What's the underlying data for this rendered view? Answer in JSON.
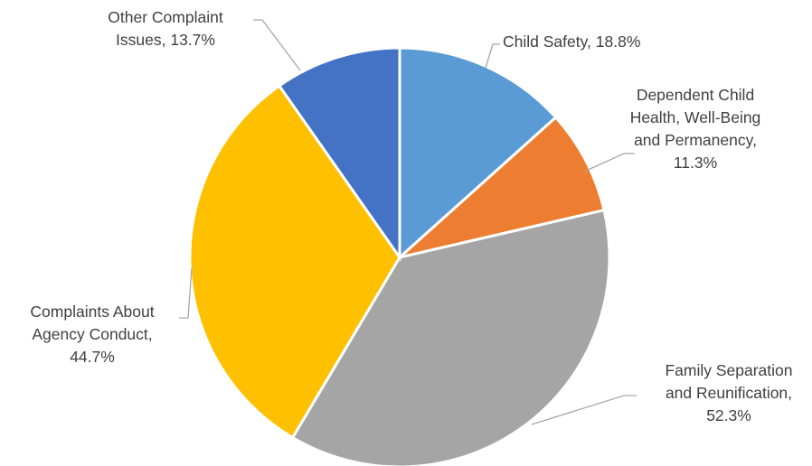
{
  "chart_data": {
    "type": "pie",
    "title": "",
    "slices": [
      {
        "name": "Child Safety",
        "percent_label": "18.8%",
        "value": 18.8,
        "color": "#5B9BD5",
        "label_lines": [
          "Child Safety, 18.8%"
        ]
      },
      {
        "name": "Dependent Child Health, Well-Being and Permanency",
        "percent_label": "11.3%",
        "value": 11.3,
        "color": "#ED7D31",
        "label_lines": [
          "Dependent Child",
          "Health, Well-Being",
          "and Permanency,",
          "11.3%"
        ]
      },
      {
        "name": "Family Separation and Reunification",
        "percent_label": "52.3%",
        "value": 52.3,
        "color": "#A5A5A5",
        "label_lines": [
          "Family Separation",
          "and Reunification,",
          "52.3%"
        ]
      },
      {
        "name": "Complaints About Agency Conduct",
        "percent_label": "44.7%",
        "value": 44.7,
        "color": "#FFC000",
        "label_lines": [
          "Complaints About",
          "Agency Conduct,",
          "44.7%"
        ]
      },
      {
        "name": "Other Complaint Issues",
        "percent_label": "13.7%",
        "value": 13.7,
        "color": "#4472C4",
        "label_lines": [
          "Other Complaint",
          "Issues, 13.7%"
        ]
      }
    ],
    "start_angle_deg": 0,
    "direction": "clockwise",
    "legend": "none",
    "data_labels": "outside with leader lines"
  }
}
